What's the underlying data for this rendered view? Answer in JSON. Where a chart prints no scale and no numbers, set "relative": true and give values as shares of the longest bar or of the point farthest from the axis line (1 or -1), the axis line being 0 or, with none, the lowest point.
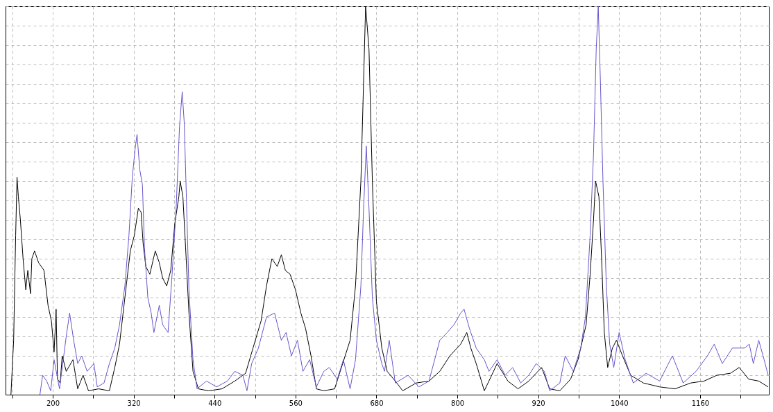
{
  "chart_data": {
    "type": "line",
    "relative": true,
    "xlim": [
      130,
      1262
    ],
    "xticks": [
      {
        "value": 140,
        "label": null
      },
      200,
      {
        "value": 260,
        "label": null
      },
      320,
      {
        "value": 380,
        "label": null
      },
      440,
      {
        "value": 500,
        "label": null
      },
      560,
      {
        "value": 620,
        "label": null
      },
      680,
      {
        "value": 740,
        "label": null
      },
      800,
      {
        "value": 860,
        "label": null
      },
      920,
      {
        "value": 980,
        "label": null
      },
      1040,
      {
        "value": 1100,
        "label": null
      },
      1160,
      {
        "value": 1220,
        "label": null
      }
    ],
    "grid": true,
    "line_style": "solid",
    "marker": "none",
    "series": [
      {
        "color": "#000000",
        "x": [
          138,
          142,
          145,
          147,
          149,
          152,
          156,
          160,
          163,
          167,
          169,
          173,
          179,
          187,
          193,
          198,
          202,
          205,
          207,
          211,
          214,
          220,
          230,
          237,
          245,
          253,
          268,
          284,
          292,
          299,
          307,
          315,
          321,
          327,
          331,
          334,
          338,
          344,
          352,
          358,
          363,
          369,
          375,
          381,
          387,
          389,
          393,
          397,
          402,
          408,
          416,
          431,
          451,
          470,
          486,
          497,
          509,
          517,
          525,
          533,
          539,
          545,
          552,
          560,
          568,
          575,
          583,
          591,
          602,
          618,
          630,
          641,
          649,
          657,
          664,
          669,
          674,
          680,
          688,
          696,
          708,
          719,
          739,
          758,
          774,
          789,
          805,
          814,
          820,
          828,
          840,
          851,
          859,
          875,
          890,
          906,
          925,
          937,
          952,
          968,
          979,
          991,
          997,
          1002,
          1005,
          1010,
          1014,
          1018,
          1023,
          1030,
          1036,
          1045,
          1057,
          1076,
          1100,
          1123,
          1146,
          1166,
          1185,
          1205,
          1218,
          1232,
          1247,
          1261
        ],
        "values": [
          0,
          0.14,
          0.41,
          0.56,
          0.51,
          0.45,
          0.35,
          0.27,
          0.32,
          0.26,
          0.35,
          0.37,
          0.34,
          0.32,
          0.23,
          0.19,
          0.11,
          0.22,
          0.04,
          0.03,
          0.1,
          0.06,
          0.09,
          0.015,
          0.05,
          0.01,
          0.015,
          0.01,
          0.07,
          0.13,
          0.25,
          0.37,
          0.41,
          0.48,
          0.47,
          0.39,
          0.33,
          0.31,
          0.37,
          0.34,
          0.3,
          0.28,
          0.32,
          0.44,
          0.51,
          0.55,
          0.51,
          0.38,
          0.21,
          0.06,
          0.015,
          0.01,
          0.015,
          0.035,
          0.055,
          0.12,
          0.19,
          0.28,
          0.35,
          0.33,
          0.36,
          0.32,
          0.31,
          0.27,
          0.21,
          0.17,
          0.1,
          0.015,
          0.01,
          0.015,
          0.08,
          0.14,
          0.28,
          0.55,
          1.0,
          0.89,
          0.55,
          0.24,
          0.12,
          0.06,
          0.035,
          0.01,
          0.03,
          0.035,
          0.06,
          0.1,
          0.13,
          0.16,
          0.12,
          0.08,
          0.01,
          0.05,
          0.08,
          0.035,
          0.015,
          0.035,
          0.07,
          0.015,
          0.01,
          0.04,
          0.09,
          0.18,
          0.31,
          0.45,
          0.55,
          0.51,
          0.35,
          0.16,
          0.07,
          0.12,
          0.14,
          0.1,
          0.05,
          0.03,
          0.02,
          0.015,
          0.03,
          0.035,
          0.05,
          0.055,
          0.07,
          0.04,
          0.035,
          0.02
        ]
      },
      {
        "color": "#6655cc",
        "x": [
          181,
          185,
          191,
          197,
          202,
          210,
          220,
          225,
          231,
          237,
          243,
          251,
          261,
          266,
          276,
          284,
          292,
          299,
          307,
          313,
          318,
          322,
          325,
          329,
          333,
          336,
          341,
          346,
          350,
          358,
          363,
          371,
          377,
          383,
          388,
          392,
          395,
          398,
          402,
          408,
          414,
          428,
          443,
          459,
          470,
          482,
          488,
          495,
          505,
          517,
          529,
          539,
          546,
          554,
          563,
          571,
          581,
          591,
          602,
          610,
          622,
          631,
          641,
          649,
          657,
          661,
          665,
          669,
          674,
          680,
          688,
          692,
          699,
          708,
          727,
          743,
          758,
          774,
          785,
          795,
          805,
          810,
          818,
          828,
          840,
          847,
          859,
          871,
          882,
          894,
          906,
          917,
          929,
          937,
          952,
          960,
          972,
          983,
          990,
          997,
          1002,
          1006,
          1009,
          1012,
          1016,
          1021,
          1026,
          1032,
          1040,
          1049,
          1061,
          1080,
          1100,
          1119,
          1135,
          1154,
          1171,
          1181,
          1193,
          1208,
          1226,
          1233,
          1239,
          1247,
          1255,
          1261
        ],
        "values": [
          0,
          0.05,
          0.035,
          0.01,
          0.09,
          0.015,
          0.15,
          0.21,
          0.14,
          0.08,
          0.1,
          0.06,
          0.08,
          0.02,
          0.03,
          0.08,
          0.12,
          0.18,
          0.28,
          0.41,
          0.56,
          0.63,
          0.67,
          0.58,
          0.54,
          0.38,
          0.25,
          0.21,
          0.16,
          0.23,
          0.18,
          0.16,
          0.31,
          0.48,
          0.69,
          0.78,
          0.7,
          0.52,
          0.27,
          0.09,
          0.015,
          0.035,
          0.02,
          0.035,
          0.06,
          0.05,
          0.01,
          0.08,
          0.12,
          0.2,
          0.21,
          0.14,
          0.16,
          0.1,
          0.14,
          0.06,
          0.09,
          0.02,
          0.06,
          0.07,
          0.04,
          0.09,
          0.015,
          0.09,
          0.28,
          0.48,
          0.64,
          0.48,
          0.25,
          0.14,
          0.08,
          0.06,
          0.14,
          0.03,
          0.05,
          0.02,
          0.035,
          0.14,
          0.16,
          0.18,
          0.21,
          0.22,
          0.17,
          0.12,
          0.09,
          0.06,
          0.09,
          0.05,
          0.07,
          0.03,
          0.05,
          0.08,
          0.06,
          0.01,
          0.03,
          0.1,
          0.06,
          0.12,
          0.2,
          0.41,
          0.62,
          0.89,
          1.0,
          0.82,
          0.55,
          0.28,
          0.13,
          0.07,
          0.16,
          0.09,
          0.03,
          0.055,
          0.035,
          0.1,
          0.03,
          0.06,
          0.1,
          0.13,
          0.08,
          0.12,
          0.12,
          0.13,
          0.08,
          0.14,
          0.09,
          0.05
        ]
      }
    ]
  }
}
